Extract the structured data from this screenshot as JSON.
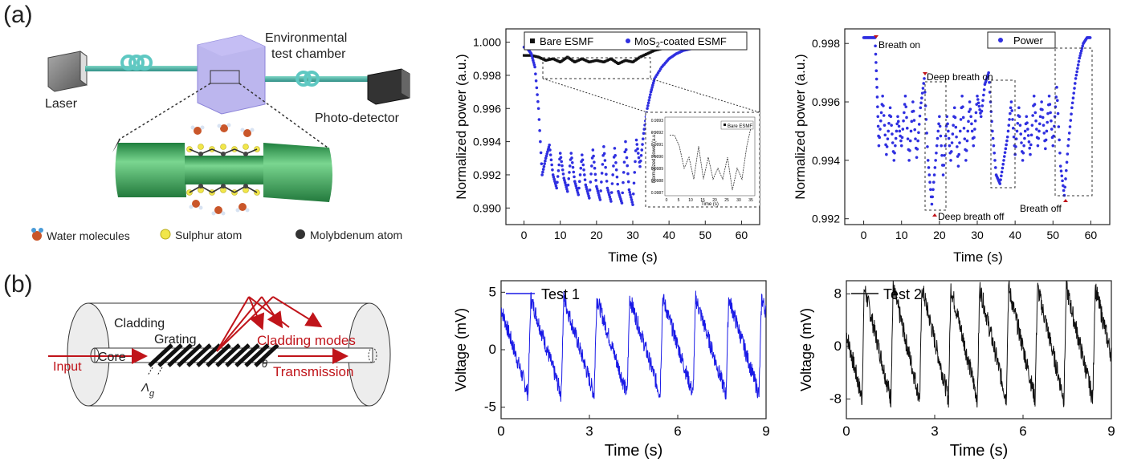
{
  "panels": {
    "a": "(a)",
    "b": "(b)"
  },
  "schematic_a": {
    "laser": "Laser",
    "chamber_line1": "Environmental",
    "chamber_line2": "test chamber",
    "detector": "Photo-detector",
    "legend": [
      "Water molecules",
      "Sulphur atom",
      "Molybdenum atom"
    ]
  },
  "schematic_b": {
    "cladding": "Cladding",
    "grating": "Grating",
    "core": "Core",
    "input": "Input",
    "cladding_modes": "Cladding modes",
    "transmission": "Transmission",
    "theta": "θ",
    "lambda": "Λ",
    "lambda_sub": "g"
  },
  "colors": {
    "blue": "#2f2fe0",
    "black": "#111111",
    "red": "#c0141a",
    "dashed": "#333333"
  },
  "chart_data": [
    {
      "id": "c1",
      "type": "scatter",
      "xlabel": "Time (s)",
      "ylabel": "Normalized power (a.u.)",
      "xlim": [
        -5,
        65
      ],
      "ylim": [
        0.989,
        1.0008
      ],
      "xticks": [
        0,
        10,
        20,
        30,
        40,
        50,
        60
      ],
      "yticks": [
        0.99,
        0.992,
        0.994,
        0.996,
        0.998,
        1.0
      ],
      "ytick_labels": [
        "0.990",
        "0.992",
        "0.994",
        "0.996",
        "0.998",
        "1.000"
      ],
      "legend": [
        "Bare ESMF",
        "MoS",
        "2",
        "-coated  ESMF"
      ],
      "series": [
        {
          "name": "Bare ESMF",
          "color": "#111111",
          "x": [
            0,
            2,
            4,
            6,
            8,
            10,
            12,
            14,
            16,
            18,
            20,
            22,
            24,
            26,
            28,
            30,
            32,
            34,
            36,
            38,
            40,
            42,
            44,
            46,
            48,
            50,
            52,
            54,
            56,
            58,
            60
          ],
          "y": [
            0.9992,
            0.9992,
            0.9991,
            0.9989,
            0.999,
            0.9988,
            0.9991,
            0.9988,
            0.999,
            0.9988,
            0.9989,
            0.9988,
            0.999,
            0.9987,
            0.9989,
            0.9988,
            0.9991,
            0.9993,
            0.9995,
            0.9996,
            0.9997,
            0.9997,
            0.9998,
            0.9998,
            0.9999,
            0.9999,
            0.9999,
            0.9999,
            1.0,
            1.0,
            1.0
          ]
        },
        {
          "name": "MoS2-coated ESMF",
          "color": "#2f2fe0",
          "x": [
            0,
            1,
            2,
            3,
            4,
            5,
            6,
            7,
            8,
            9,
            10,
            11,
            12,
            13,
            14,
            15,
            16,
            17,
            18,
            19,
            20,
            21,
            22,
            23,
            24,
            25,
            26,
            27,
            28,
            29,
            30,
            31,
            32,
            33,
            34,
            35,
            36,
            38,
            40,
            42,
            44,
            46,
            48,
            50,
            52,
            54,
            56,
            58,
            60
          ],
          "y": [
            0.9997,
            0.9996,
            0.9993,
            0.9985,
            0.996,
            0.992,
            0.993,
            0.9938,
            0.992,
            0.9912,
            0.9933,
            0.9918,
            0.991,
            0.9933,
            0.9916,
            0.9908,
            0.9932,
            0.9914,
            0.9906,
            0.9935,
            0.9913,
            0.9905,
            0.9937,
            0.9912,
            0.9904,
            0.9936,
            0.991,
            0.9903,
            0.994,
            0.9911,
            0.9902,
            0.9941,
            0.9925,
            0.9945,
            0.996,
            0.997,
            0.9978,
            0.9985,
            0.999,
            0.9993,
            0.9995,
            0.9996,
            0.9997,
            0.9998,
            0.9998,
            0.9999,
            0.9999,
            1.0,
            1.0
          ]
        }
      ],
      "inset": {
        "ylabel": "Normalized power (a.u.)",
        "xlabel": "Time (s)",
        "legend": "Bare ESMF",
        "xticks": [
          "0",
          "5",
          "10",
          "15",
          "20",
          "25",
          "30",
          "35"
        ],
        "yticks": [
          "0.9993",
          "0.9992",
          "0.9991",
          "0.9990",
          "0.9989",
          "0.9988",
          "0.9987"
        ]
      }
    },
    {
      "id": "c2",
      "type": "scatter",
      "xlabel": "Time (s)",
      "ylabel": "Normalized power (a.u.)",
      "xlim": [
        -5,
        65
      ],
      "ylim": [
        0.9918,
        0.9985
      ],
      "xticks": [
        0,
        10,
        20,
        30,
        40,
        50,
        60
      ],
      "yticks": [
        0.992,
        0.994,
        0.996,
        0.998
      ],
      "ytick_labels": [
        "0.992",
        "0.994",
        "0.996",
        "0.998"
      ],
      "legend": "Power",
      "annotations": [
        "Breath on",
        "Deep breath on",
        "Deep breath off",
        "Breath off"
      ],
      "series": [
        {
          "name": "Power",
          "color": "#2f2fe0",
          "x": [
            0,
            1,
            2,
            3,
            3.5,
            4,
            5,
            6,
            7,
            8,
            9,
            10,
            11,
            12,
            13,
            14,
            15,
            16,
            17,
            18,
            19,
            20,
            21,
            22,
            23,
            24,
            25,
            26,
            27,
            28,
            29,
            30,
            31,
            32,
            33,
            34,
            35,
            36,
            37,
            38,
            39,
            40,
            41,
            42,
            43,
            44,
            45,
            46,
            47,
            48,
            49,
            50,
            51,
            52,
            53,
            54,
            55,
            56,
            57,
            58,
            59,
            60
          ],
          "y": [
            0.9982,
            0.9982,
            0.9982,
            0.9982,
            0.9965,
            0.9945,
            0.9962,
            0.9942,
            0.9958,
            0.994,
            0.9955,
            0.9945,
            0.9962,
            0.994,
            0.996,
            0.9941,
            0.9958,
            0.9968,
            0.994,
            0.9925,
            0.994,
            0.9955,
            0.9935,
            0.9955,
            0.994,
            0.9958,
            0.9938,
            0.9962,
            0.994,
            0.996,
            0.9945,
            0.9962,
            0.9955,
            0.9966,
            0.997,
            0.995,
            0.9935,
            0.9932,
            0.994,
            0.9948,
            0.996,
            0.9942,
            0.9958,
            0.994,
            0.9955,
            0.9942,
            0.9962,
            0.9945,
            0.996,
            0.9944,
            0.9962,
            0.9945,
            0.9965,
            0.9938,
            0.9928,
            0.9945,
            0.9958,
            0.9968,
            0.9975,
            0.998,
            0.9982,
            0.9982
          ]
        }
      ]
    },
    {
      "id": "c3",
      "type": "line",
      "xlabel": "Time (s)",
      "ylabel": "Voltage (mV)",
      "xlim": [
        0,
        9
      ],
      "ylim": [
        -6,
        6
      ],
      "xticks": [
        0,
        3,
        6,
        9
      ],
      "yticks": [
        -5,
        0,
        5
      ],
      "ytick_labels": [
        "-5",
        "0",
        "5"
      ],
      "legend": "Test 1",
      "series": [
        {
          "name": "Test 1",
          "color": "#1a1ae6",
          "period": 1.12,
          "phase": 0.2,
          "amplitude": 4.2,
          "offset": 0.3
        }
      ]
    },
    {
      "id": "c4",
      "type": "line",
      "xlabel": "Time (s)",
      "ylabel": "Voltage (mV)",
      "xlim": [
        0,
        9
      ],
      "ylim": [
        -11,
        10
      ],
      "xticks": [
        0,
        3,
        6,
        9
      ],
      "yticks": [
        -8,
        0,
        8
      ],
      "ytick_labels": [
        "-8",
        "0",
        "8"
      ],
      "legend": "Test 2",
      "series": [
        {
          "name": "Test 2",
          "color": "#111111",
          "period": 0.98,
          "phase": 0.45,
          "amplitude": 8.5,
          "offset": 0.5
        }
      ]
    }
  ]
}
